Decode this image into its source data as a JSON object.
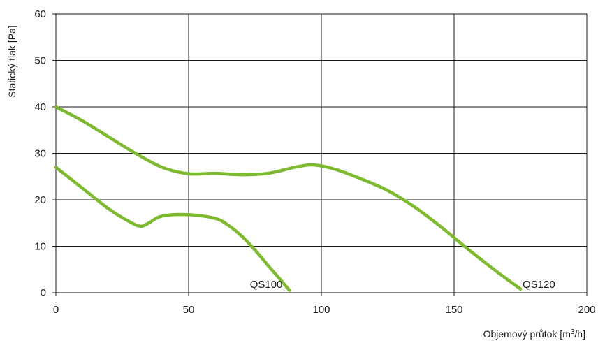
{
  "chart_data": {
    "type": "line",
    "xlabel_main": "Objemový průtok [m",
    "xlabel_sup": "3",
    "xlabel_tail": "/h]",
    "ylabel": "Statický tlak [Pa]",
    "xlim": [
      0,
      200
    ],
    "ylim": [
      0,
      60
    ],
    "xticks": [
      "0",
      "50",
      "100",
      "150",
      "200"
    ],
    "yticks": [
      "0",
      "10",
      "20",
      "30",
      "40",
      "50",
      "60"
    ],
    "grid": true,
    "line_color": "#7dba2f",
    "series": [
      {
        "name": "QS120",
        "x": [
          0,
          10,
          20,
          30,
          40,
          50,
          60,
          70,
          80,
          90,
          97,
          105,
          115,
          125,
          135,
          145,
          155,
          165,
          175
        ],
        "y": [
          40,
          37,
          33.5,
          30,
          27,
          25.6,
          25.7,
          25.4,
          25.7,
          27,
          27.5,
          26.6,
          24.5,
          22,
          18.5,
          14.2,
          9.5,
          5,
          0.8
        ]
      },
      {
        "name": "QS100",
        "x": [
          0,
          10,
          20,
          28,
          32,
          35,
          40,
          50,
          60,
          65,
          70,
          75,
          80,
          84,
          88
        ],
        "y": [
          27,
          22.5,
          18,
          15.2,
          14.3,
          15,
          16.5,
          16.8,
          16,
          14.5,
          12.2,
          9.2,
          5.8,
          3.2,
          0.5
        ]
      }
    ]
  }
}
